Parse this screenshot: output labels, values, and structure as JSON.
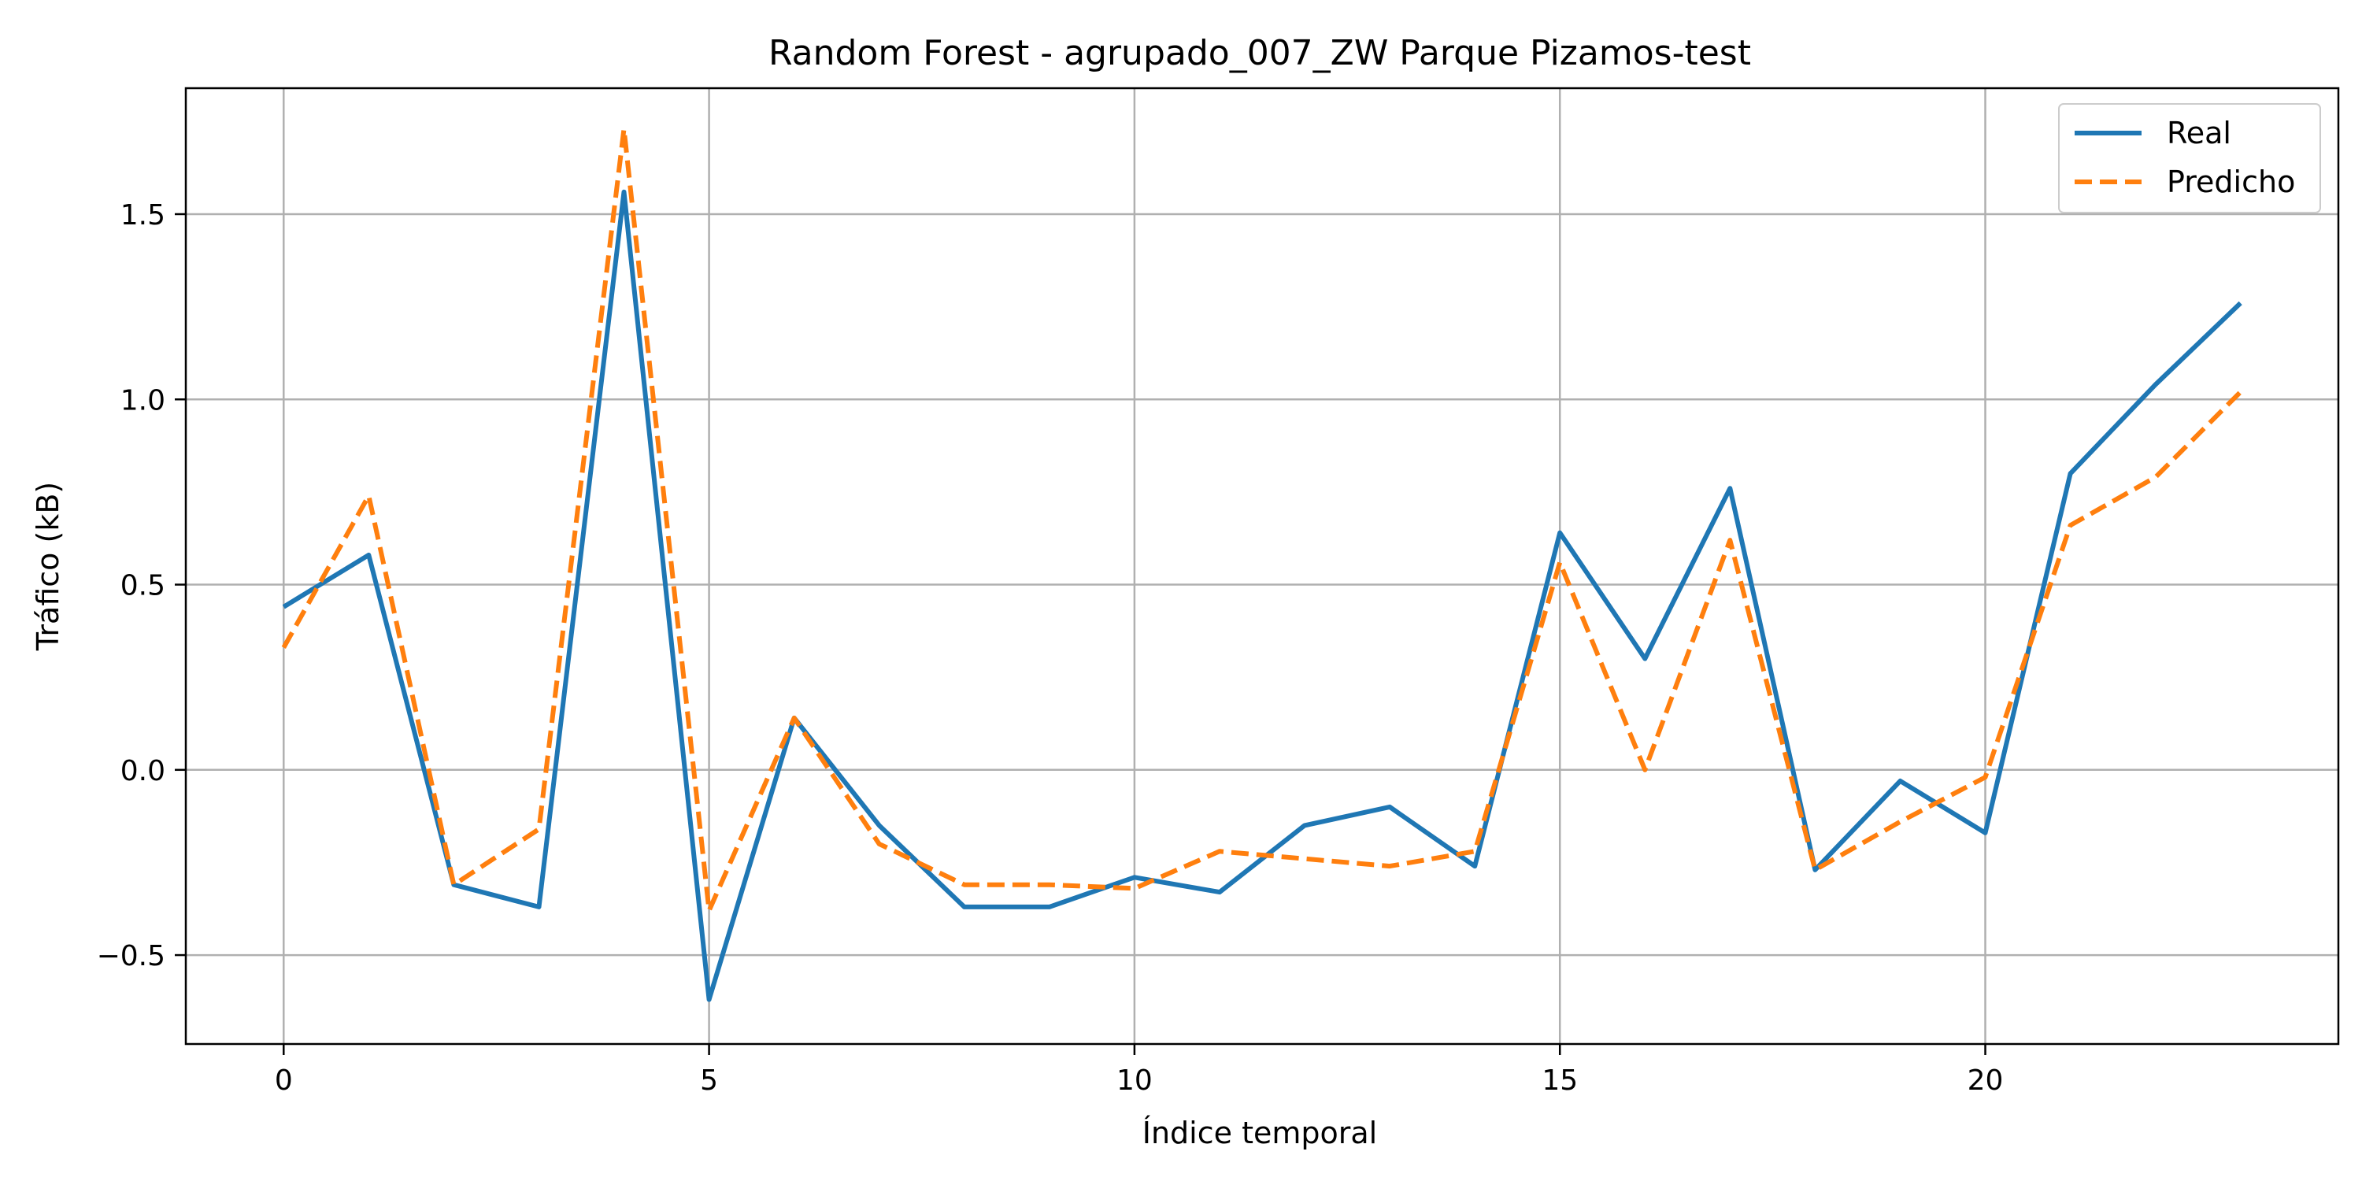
{
  "chart_data": {
    "type": "line",
    "title": "Random Forest - agrupado_007_ZW Parque Pizamos-test",
    "xlabel": "Índice temporal",
    "ylabel": "Tráfico (kB)",
    "xlim": [
      -1.15,
      24.15
    ],
    "ylim": [
      -0.74,
      1.84
    ],
    "xticks": [
      0,
      5,
      10,
      15,
      20
    ],
    "xtick_labels": [
      "0",
      "5",
      "10",
      "15",
      "20"
    ],
    "yticks": [
      -0.5,
      0.0,
      0.5,
      1.0,
      1.5
    ],
    "ytick_labels": [
      "−0.5",
      "0.0",
      "0.5",
      "1.0",
      "1.5"
    ],
    "grid": true,
    "legend_position": "top-right",
    "x": [
      0,
      1,
      2,
      3,
      4,
      5,
      6,
      7,
      8,
      9,
      10,
      11,
      12,
      13,
      14,
      15,
      16,
      17,
      18,
      19,
      20,
      21,
      22,
      23
    ],
    "series": [
      {
        "name": "Real",
        "color": "#1f77b4",
        "style": "solid",
        "values": [
          0.44,
          0.58,
          -0.31,
          -0.37,
          1.56,
          -0.62,
          0.14,
          -0.15,
          -0.37,
          -0.37,
          -0.29,
          -0.33,
          -0.15,
          -0.1,
          -0.26,
          0.64,
          0.3,
          0.76,
          -0.27,
          -0.03,
          -0.17,
          0.8,
          1.04,
          1.26
        ]
      },
      {
        "name": "Predicho",
        "color": "#ff7f0e",
        "style": "dashed",
        "values": [
          0.33,
          0.74,
          -0.31,
          -0.16,
          1.73,
          -0.38,
          0.14,
          -0.2,
          -0.31,
          -0.31,
          -0.32,
          -0.22,
          -0.24,
          -0.26,
          -0.22,
          0.56,
          0.0,
          0.62,
          -0.27,
          -0.14,
          -0.02,
          0.66,
          0.79,
          1.02
        ]
      }
    ]
  }
}
